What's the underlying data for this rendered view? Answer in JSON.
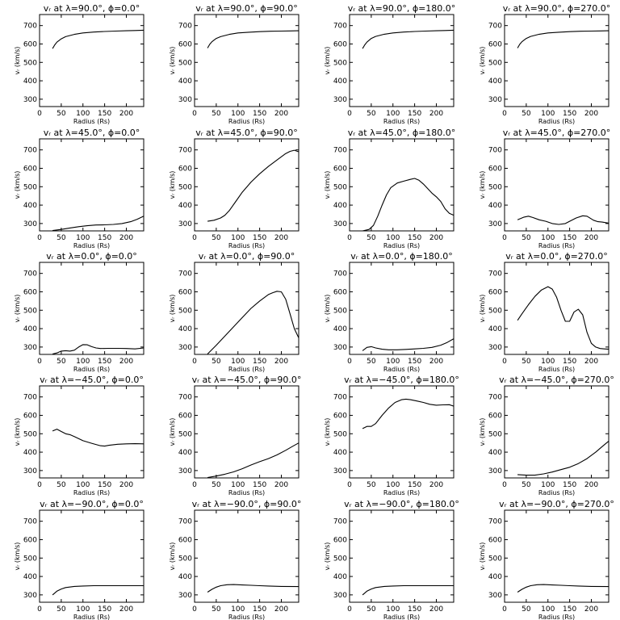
{
  "shared": {
    "xlabel": "Radius (Rs)",
    "ylabel": "vᵣ (km/s)",
    "xlim": [
      0,
      240
    ],
    "ylim": [
      260,
      760
    ],
    "xticks": [
      0,
      50,
      100,
      150,
      200
    ],
    "yticks": [
      300,
      400,
      500,
      600,
      700
    ]
  },
  "chart_data": [
    {
      "type": "line",
      "title": "vᵣ at λ=90.0°, ϕ=0.0°",
      "xlabel": "Radius (Rs)",
      "ylabel": "vᵣ (km/s)",
      "xlim": [
        0,
        240
      ],
      "ylim": [
        260,
        760
      ],
      "x": [
        30,
        35,
        40,
        50,
        60,
        80,
        100,
        125,
        150,
        175,
        200,
        220,
        240
      ],
      "y": [
        575,
        595,
        610,
        628,
        640,
        652,
        660,
        665,
        668,
        670,
        672,
        673,
        675
      ]
    },
    {
      "type": "line",
      "title": "vᵣ at λ=90.0°, ϕ=90.0°",
      "xlabel": "Radius (Rs)",
      "ylabel": "vᵣ (km/s)",
      "xlim": [
        0,
        240
      ],
      "ylim": [
        260,
        760
      ],
      "x": [
        30,
        35,
        40,
        50,
        60,
        80,
        100,
        125,
        150,
        175,
        200,
        220,
        240
      ],
      "y": [
        578,
        598,
        612,
        630,
        640,
        652,
        660,
        664,
        667,
        669,
        670,
        671,
        672
      ]
    },
    {
      "type": "line",
      "title": "vᵣ at λ=90.0°, ϕ=180.0°",
      "xlabel": "Radius (Rs)",
      "ylabel": "vᵣ (km/s)",
      "xlim": [
        0,
        240
      ],
      "ylim": [
        260,
        760
      ],
      "x": [
        30,
        35,
        40,
        50,
        60,
        80,
        100,
        125,
        150,
        175,
        200,
        220,
        240
      ],
      "y": [
        575,
        595,
        610,
        630,
        641,
        653,
        660,
        665,
        668,
        670,
        672,
        673,
        675
      ]
    },
    {
      "type": "line",
      "title": "vᵣ at λ=90.0°, ϕ=270.0°",
      "xlabel": "Radius (Rs)",
      "ylabel": "vᵣ (km/s)",
      "xlim": [
        0,
        240
      ],
      "ylim": [
        260,
        760
      ],
      "x": [
        30,
        35,
        40,
        50,
        60,
        80,
        100,
        125,
        150,
        175,
        200,
        220,
        240
      ],
      "y": [
        578,
        598,
        612,
        630,
        641,
        653,
        660,
        664,
        667,
        669,
        670,
        671,
        672
      ]
    },
    {
      "type": "line",
      "title": "vᵣ at λ=45.0°, ϕ=0.0°",
      "xlabel": "Radius (Rs)",
      "ylabel": "vᵣ (km/s)",
      "xlim": [
        0,
        240
      ],
      "ylim": [
        260,
        760
      ],
      "x": [
        30,
        50,
        70,
        90,
        110,
        130,
        150,
        170,
        190,
        210,
        225,
        240
      ],
      "y": [
        262,
        268,
        276,
        283,
        288,
        292,
        293,
        295,
        300,
        310,
        323,
        340
      ]
    },
    {
      "type": "line",
      "title": "vᵣ at λ=45.0°, ϕ=90.0°",
      "xlabel": "Radius (Rs)",
      "ylabel": "vᵣ (km/s)",
      "xlim": [
        0,
        240
      ],
      "ylim": [
        260,
        760
      ],
      "x": [
        30,
        45,
        60,
        70,
        80,
        95,
        110,
        130,
        150,
        170,
        190,
        210,
        220,
        230,
        240
      ],
      "y": [
        312,
        318,
        330,
        345,
        370,
        420,
        470,
        525,
        570,
        610,
        645,
        680,
        692,
        698,
        690
      ]
    },
    {
      "type": "line",
      "title": "vᵣ at λ=45.0°, ϕ=180.0°",
      "xlabel": "Radius (Rs)",
      "ylabel": "vᵣ (km/s)",
      "xlim": [
        0,
        240
      ],
      "ylim": [
        260,
        760
      ],
      "x": [
        30,
        45,
        55,
        65,
        75,
        85,
        95,
        110,
        125,
        140,
        150,
        160,
        170,
        180,
        190,
        200,
        210,
        220,
        230,
        240
      ],
      "y": [
        260,
        268,
        290,
        340,
        400,
        455,
        495,
        520,
        530,
        540,
        545,
        535,
        515,
        490,
        465,
        445,
        420,
        380,
        355,
        345
      ]
    },
    {
      "type": "line",
      "title": "vᵣ at λ=45.0°, ϕ=270.0°",
      "xlabel": "Radius (Rs)",
      "ylabel": "vᵣ (km/s)",
      "xlim": [
        0,
        240
      ],
      "ylim": [
        260,
        760
      ],
      "x": [
        30,
        45,
        55,
        65,
        80,
        95,
        110,
        125,
        140,
        150,
        165,
        180,
        190,
        205,
        215,
        225,
        240
      ],
      "y": [
        320,
        335,
        340,
        333,
        320,
        312,
        300,
        295,
        300,
        312,
        330,
        342,
        340,
        318,
        310,
        308,
        302
      ]
    },
    {
      "type": "line",
      "title": "vᵣ at λ=0.0°, ϕ=0.0°",
      "xlabel": "Radius (Rs)",
      "ylabel": "vᵣ (km/s)",
      "xlim": [
        0,
        240
      ],
      "ylim": [
        260,
        760
      ],
      "x": [
        30,
        40,
        50,
        60,
        70,
        80,
        90,
        100,
        110,
        120,
        130,
        140,
        160,
        180,
        200,
        220,
        240
      ],
      "y": [
        262,
        268,
        278,
        280,
        278,
        283,
        300,
        313,
        312,
        302,
        295,
        292,
        293,
        293,
        292,
        290,
        295
      ]
    },
    {
      "type": "line",
      "title": "vᵣ at λ=0.0°, ϕ=90.0°",
      "xlabel": "Radius (Rs)",
      "ylabel": "vᵣ (km/s)",
      "xlim": [
        0,
        240
      ],
      "ylim": [
        260,
        760
      ],
      "x": [
        30,
        50,
        70,
        90,
        110,
        130,
        150,
        170,
        180,
        190,
        200,
        210,
        220,
        230,
        240
      ],
      "y": [
        262,
        310,
        360,
        410,
        460,
        510,
        550,
        585,
        595,
        603,
        600,
        560,
        480,
        400,
        350
      ]
    },
    {
      "type": "line",
      "title": "vᵣ at λ=0.0°, ϕ=180.0°",
      "xlabel": "Radius (Rs)",
      "ylabel": "vᵣ (km/s)",
      "xlim": [
        0,
        240
      ],
      "ylim": [
        260,
        760
      ],
      "x": [
        30,
        40,
        50,
        60,
        75,
        90,
        110,
        130,
        150,
        170,
        190,
        210,
        225,
        240
      ],
      "y": [
        280,
        298,
        302,
        295,
        288,
        285,
        285,
        287,
        290,
        293,
        298,
        310,
        325,
        345
      ]
    },
    {
      "type": "line",
      "title": "vᵣ at λ=0.0°, ϕ=270.0°",
      "xlabel": "Radius (Rs)",
      "ylabel": "vᵣ (km/s)",
      "xlim": [
        0,
        240
      ],
      "ylim": [
        260,
        760
      ],
      "x": [
        30,
        40,
        55,
        70,
        85,
        100,
        110,
        120,
        130,
        140,
        150,
        160,
        170,
        180,
        190,
        200,
        210,
        220,
        230,
        240
      ],
      "y": [
        445,
        480,
        530,
        575,
        610,
        628,
        615,
        570,
        500,
        440,
        440,
        490,
        505,
        475,
        380,
        320,
        300,
        292,
        290,
        288
      ]
    },
    {
      "type": "line",
      "title": "vᵣ at λ=−45.0°, ϕ=0.0°",
      "xlabel": "Radius (Rs)",
      "ylabel": "vᵣ (km/s)",
      "xlim": [
        0,
        240
      ],
      "ylim": [
        260,
        760
      ],
      "x": [
        30,
        40,
        50,
        60,
        70,
        80,
        100,
        120,
        140,
        150,
        160,
        180,
        200,
        220,
        240
      ],
      "y": [
        515,
        525,
        512,
        500,
        495,
        485,
        462,
        448,
        435,
        433,
        437,
        443,
        445,
        446,
        445
      ]
    },
    {
      "type": "line",
      "title": "vᵣ at λ=−45.0°, ϕ=90.0°",
      "xlabel": "Radius (Rs)",
      "ylabel": "vᵣ (km/s)",
      "xlim": [
        0,
        240
      ],
      "ylim": [
        260,
        760
      ],
      "x": [
        30,
        50,
        70,
        90,
        110,
        130,
        150,
        170,
        190,
        210,
        225,
        240
      ],
      "y": [
        262,
        270,
        280,
        293,
        310,
        330,
        348,
        365,
        385,
        410,
        430,
        450
      ]
    },
    {
      "type": "line",
      "title": "vᵣ at λ=−45.0°, ϕ=180.0°",
      "xlabel": "Radius (Rs)",
      "ylabel": "vᵣ (km/s)",
      "xlim": [
        0,
        240
      ],
      "ylim": [
        260,
        760
      ],
      "x": [
        30,
        40,
        50,
        60,
        75,
        90,
        105,
        120,
        130,
        140,
        155,
        170,
        185,
        200,
        215,
        230,
        240
      ],
      "y": [
        528,
        540,
        540,
        555,
        600,
        640,
        670,
        685,
        688,
        685,
        678,
        670,
        660,
        655,
        657,
        658,
        650
      ]
    },
    {
      "type": "line",
      "title": "vᵣ at λ=−45.0°, ϕ=270.0°",
      "xlabel": "Radius (Rs)",
      "ylabel": "vᵣ (km/s)",
      "xlim": [
        0,
        240
      ],
      "ylim": [
        260,
        760
      ],
      "x": [
        30,
        50,
        70,
        90,
        110,
        130,
        150,
        170,
        190,
        210,
        225,
        240
      ],
      "y": [
        278,
        275,
        275,
        282,
        292,
        305,
        318,
        338,
        365,
        400,
        430,
        460
      ]
    },
    {
      "type": "line",
      "title": "vᵣ at λ=−90.0°, ϕ=0.0°",
      "xlabel": "Radius (Rs)",
      "ylabel": "vᵣ (km/s)",
      "xlim": [
        0,
        240
      ],
      "ylim": [
        260,
        760
      ],
      "x": [
        30,
        40,
        50,
        60,
        80,
        100,
        125,
        150,
        175,
        200,
        240
      ],
      "y": [
        300,
        320,
        332,
        340,
        346,
        348,
        350,
        350,
        350,
        350,
        350
      ]
    },
    {
      "type": "line",
      "title": "vᵣ at λ=−90.0°, ϕ=90.0°",
      "xlabel": "Radius (Rs)",
      "ylabel": "vᵣ (km/s)",
      "xlim": [
        0,
        240
      ],
      "ylim": [
        260,
        760
      ],
      "x": [
        30,
        40,
        50,
        60,
        75,
        90,
        110,
        130,
        150,
        170,
        200,
        240
      ],
      "y": [
        315,
        330,
        342,
        350,
        355,
        356,
        354,
        352,
        350,
        348,
        346,
        345
      ]
    },
    {
      "type": "line",
      "title": "vᵣ at λ=−90.0°, ϕ=180.0°",
      "xlabel": "Radius (Rs)",
      "ylabel": "vᵣ (km/s)",
      "xlim": [
        0,
        240
      ],
      "ylim": [
        260,
        760
      ],
      "x": [
        30,
        40,
        50,
        60,
        80,
        100,
        125,
        150,
        175,
        200,
        240
      ],
      "y": [
        300,
        320,
        332,
        340,
        346,
        348,
        350,
        350,
        350,
        350,
        350
      ]
    },
    {
      "type": "line",
      "title": "vᵣ at λ=−90.0°, ϕ=270.0°",
      "xlabel": "Radius (Rs)",
      "ylabel": "vᵣ (km/s)",
      "xlim": [
        0,
        240
      ],
      "ylim": [
        260,
        760
      ],
      "x": [
        30,
        40,
        50,
        60,
        75,
        90,
        110,
        130,
        150,
        170,
        200,
        240
      ],
      "y": [
        315,
        330,
        342,
        350,
        355,
        356,
        354,
        352,
        350,
        348,
        346,
        345
      ]
    }
  ]
}
